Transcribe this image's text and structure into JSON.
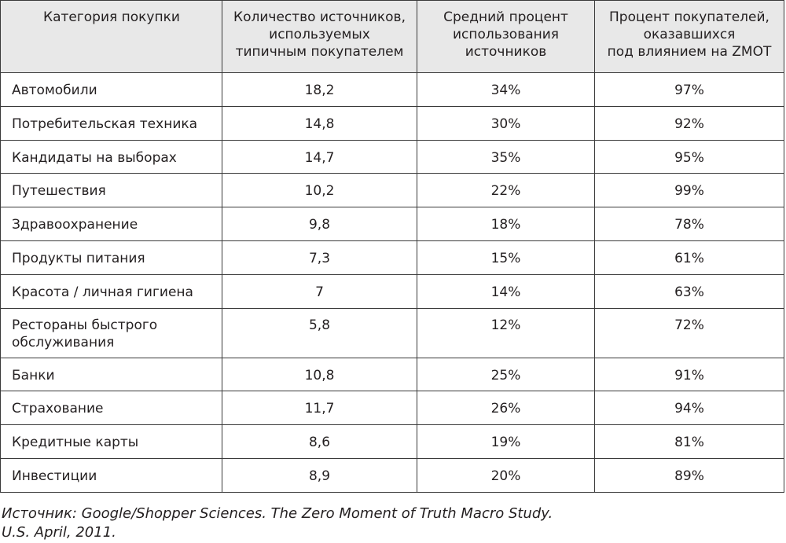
{
  "table": {
    "headers": [
      [
        "Категория покупки"
      ],
      [
        "Количество источников,",
        "используемых",
        "типичным покупателем"
      ],
      [
        "Средний процент",
        "использования",
        "источников"
      ],
      [
        "Процент покупателей,",
        "оказавшихся",
        "под влиянием на ZMOT"
      ]
    ],
    "rows": [
      {
        "category": [
          "Автомобили"
        ],
        "sources": "18,2",
        "avg_percent": "34%",
        "zmot_percent": "97%"
      },
      {
        "category": [
          "Потребительская техника"
        ],
        "sources": "14,8",
        "avg_percent": "30%",
        "zmot_percent": "92%"
      },
      {
        "category": [
          "Кандидаты на  выборах"
        ],
        "sources": "14,7",
        "avg_percent": "35%",
        "zmot_percent": "95%"
      },
      {
        "category": [
          "Путешествия"
        ],
        "sources": "10,2",
        "avg_percent": "22%",
        "zmot_percent": "99%"
      },
      {
        "category": [
          "Здравоохранение"
        ],
        "sources": "9,8",
        "avg_percent": "18%",
        "zmot_percent": "78%"
      },
      {
        "category": [
          "Продукты питания"
        ],
        "sources": "7,3",
        "avg_percent": "15%",
        "zmot_percent": "61%"
      },
      {
        "category": [
          "Красота / личная гигиена"
        ],
        "sources": "7",
        "avg_percent": "14%",
        "zmot_percent": "63%"
      },
      {
        "category": [
          "Рестораны быстрого",
          "обслуживания"
        ],
        "sources": "5,8",
        "avg_percent": "12%",
        "zmot_percent": "72%"
      },
      {
        "category": [
          "Банки"
        ],
        "sources": "10,8",
        "avg_percent": "25%",
        "zmot_percent": "91%"
      },
      {
        "category": [
          "Страхование"
        ],
        "sources": "11,7",
        "avg_percent": "26%",
        "zmot_percent": "94%"
      },
      {
        "category": [
          "Кредитные карты"
        ],
        "sources": "8,6",
        "avg_percent": "19%",
        "zmot_percent": "81%"
      },
      {
        "category": [
          "Инвестиции"
        ],
        "sources": "8,9",
        "avg_percent": "20%",
        "zmot_percent": "89%"
      }
    ]
  },
  "source": {
    "line1": "Источник: Google/Shopper Sciences. The Zero Moment of Truth Macro Study.",
    "line2": "U.S. April, 2011."
  }
}
